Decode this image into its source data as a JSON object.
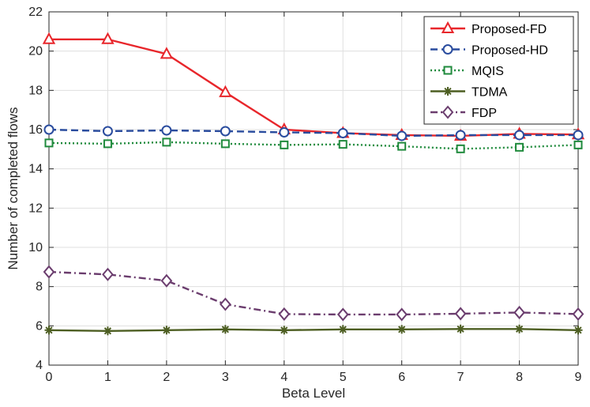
{
  "chart_data": {
    "type": "line",
    "title": "",
    "xlabel": "Beta Level",
    "ylabel": "Number of completed flows",
    "xlim": [
      0,
      9
    ],
    "ylim": [
      4,
      22
    ],
    "xticks": [
      "0",
      "1",
      "2",
      "3",
      "4",
      "5",
      "6",
      "7",
      "8",
      "9"
    ],
    "yticks": [
      "4",
      "6",
      "8",
      "10",
      "12",
      "14",
      "16",
      "18",
      "20",
      "22"
    ],
    "grid": true,
    "legend_position": "top-right",
    "x": [
      0,
      1,
      2,
      3,
      4,
      5,
      6,
      7,
      8,
      9
    ],
    "series": [
      {
        "name": "Proposed-FD",
        "color": "#e8262b",
        "marker": "triangle",
        "dash": "solid",
        "values": [
          20.6,
          20.6,
          19.85,
          17.9,
          16.0,
          15.82,
          15.72,
          15.68,
          15.78,
          15.75
        ]
      },
      {
        "name": "Proposed-HD",
        "color": "#2a4c9e",
        "marker": "circle",
        "dash": "dashed",
        "values": [
          16.0,
          15.92,
          15.96,
          15.92,
          15.86,
          15.82,
          15.68,
          15.72,
          15.72,
          15.72
        ]
      },
      {
        "name": "MQIS",
        "color": "#1f8a3c",
        "marker": "square",
        "dash": "dotted",
        "values": [
          15.32,
          15.28,
          15.36,
          15.28,
          15.22,
          15.25,
          15.15,
          15.02,
          15.1,
          15.22
        ]
      },
      {
        "name": "TDMA",
        "color": "#4d5e22",
        "marker": "asterisk",
        "dash": "solid",
        "values": [
          5.78,
          5.74,
          5.78,
          5.82,
          5.78,
          5.82,
          5.82,
          5.84,
          5.84,
          5.78
        ]
      },
      {
        "name": "FDP",
        "color": "#6b3d6e",
        "marker": "diamond",
        "dash": "dashdot",
        "values": [
          8.75,
          8.62,
          8.3,
          7.1,
          6.6,
          6.58,
          6.58,
          6.62,
          6.68,
          6.6
        ]
      }
    ]
  }
}
